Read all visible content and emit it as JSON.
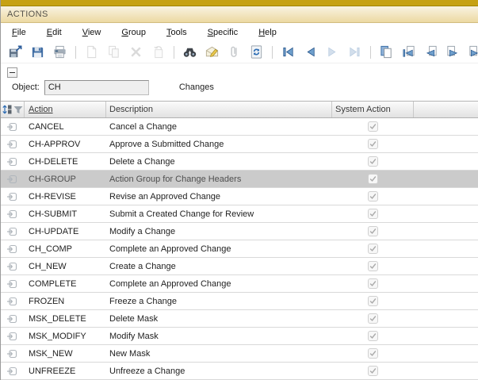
{
  "window": {
    "title": "ACTIONS"
  },
  "menu": {
    "items": [
      {
        "mnemonic": "F",
        "rest": "ile"
      },
      {
        "mnemonic": "E",
        "rest": "dit"
      },
      {
        "mnemonic": "V",
        "rest": "iew"
      },
      {
        "mnemonic": "G",
        "rest": "roup"
      },
      {
        "mnemonic": "T",
        "rest": "ools"
      },
      {
        "mnemonic": "S",
        "rest": "pecific"
      },
      {
        "mnemonic": "H",
        "rest": "elp"
      }
    ]
  },
  "toolbar": {
    "items": [
      {
        "name": "save-exit-icon",
        "disabled": false
      },
      {
        "name": "save-icon",
        "disabled": false
      },
      {
        "name": "print-icon",
        "disabled": false
      },
      {
        "sep": true
      },
      {
        "name": "new-icon",
        "disabled": true
      },
      {
        "name": "copy-icon",
        "disabled": true
      },
      {
        "name": "delete-icon",
        "disabled": true
      },
      {
        "name": "revert-icon",
        "disabled": true
      },
      {
        "sep": true
      },
      {
        "name": "find-icon",
        "disabled": false
      },
      {
        "name": "note-icon",
        "disabled": false
      },
      {
        "name": "attachment-icon",
        "disabled": true
      },
      {
        "name": "refresh-icon",
        "disabled": false
      },
      {
        "sep": true
      },
      {
        "name": "first-record-icon",
        "disabled": false
      },
      {
        "name": "prev-record-icon",
        "disabled": false
      },
      {
        "name": "next-record-icon",
        "disabled": true
      },
      {
        "name": "last-record-icon",
        "disabled": true
      },
      {
        "sep": true
      },
      {
        "name": "duplicate-icon",
        "disabled": false
      },
      {
        "name": "doc-first-icon",
        "disabled": false
      },
      {
        "name": "doc-prev-icon",
        "disabled": false
      },
      {
        "name": "doc-next-icon",
        "disabled": false
      },
      {
        "name": "doc-last-icon",
        "disabled": false
      },
      {
        "sep": true
      },
      {
        "name": "grid-icon",
        "disabled": false
      },
      {
        "sep": true
      },
      {
        "name": "user-exit-icon",
        "disabled": false
      }
    ]
  },
  "panel": {
    "object_label": "Object:",
    "object_value": "CH",
    "object_description": "Changes"
  },
  "table": {
    "columns": {
      "action": "Action",
      "description": "Description",
      "system_action": "System Action"
    },
    "sorted_column": "Action",
    "selected_action": "CH-GROUP",
    "rows": [
      {
        "action": "CANCEL",
        "description": "Cancel a Change",
        "system_action": true
      },
      {
        "action": "CH-APPROV",
        "description": "Approve a Submitted Change",
        "system_action": true
      },
      {
        "action": "CH-DELETE",
        "description": "Delete a Change",
        "system_action": true
      },
      {
        "action": "CH-GROUP",
        "description": "Action Group for Change Headers",
        "system_action": true
      },
      {
        "action": "CH-REVISE",
        "description": "Revise an Approved Change",
        "system_action": true
      },
      {
        "action": "CH-SUBMIT",
        "description": "Submit a Created Change for Review",
        "system_action": true
      },
      {
        "action": "CH-UPDATE",
        "description": "Modify a Change",
        "system_action": true
      },
      {
        "action": "CH_COMP",
        "description": "Complete an Approved Change",
        "system_action": true
      },
      {
        "action": "CH_NEW",
        "description": "Create a Change",
        "system_action": true
      },
      {
        "action": "COMPLETE",
        "description": "Complete an Approved Change",
        "system_action": true
      },
      {
        "action": "FROZEN",
        "description": "Freeze a Change",
        "system_action": true
      },
      {
        "action": "MSK_DELETE",
        "description": "Delete Mask",
        "system_action": true
      },
      {
        "action": "MSK_MODIFY",
        "description": "Modify Mask",
        "system_action": true
      },
      {
        "action": "MSK_NEW",
        "description": "New Mask",
        "system_action": true
      },
      {
        "action": "UNFREEZE",
        "description": "Unfreeze a Change",
        "system_action": true
      }
    ]
  },
  "colors": {
    "accent_gold": "#c6a113",
    "titlebar_gradient_top": "#f9f3e2",
    "titlebar_gradient_bottom": "#ecd9a2",
    "selected_row": "#cbcbcb",
    "toolbar_blue": "#3a71ae"
  }
}
